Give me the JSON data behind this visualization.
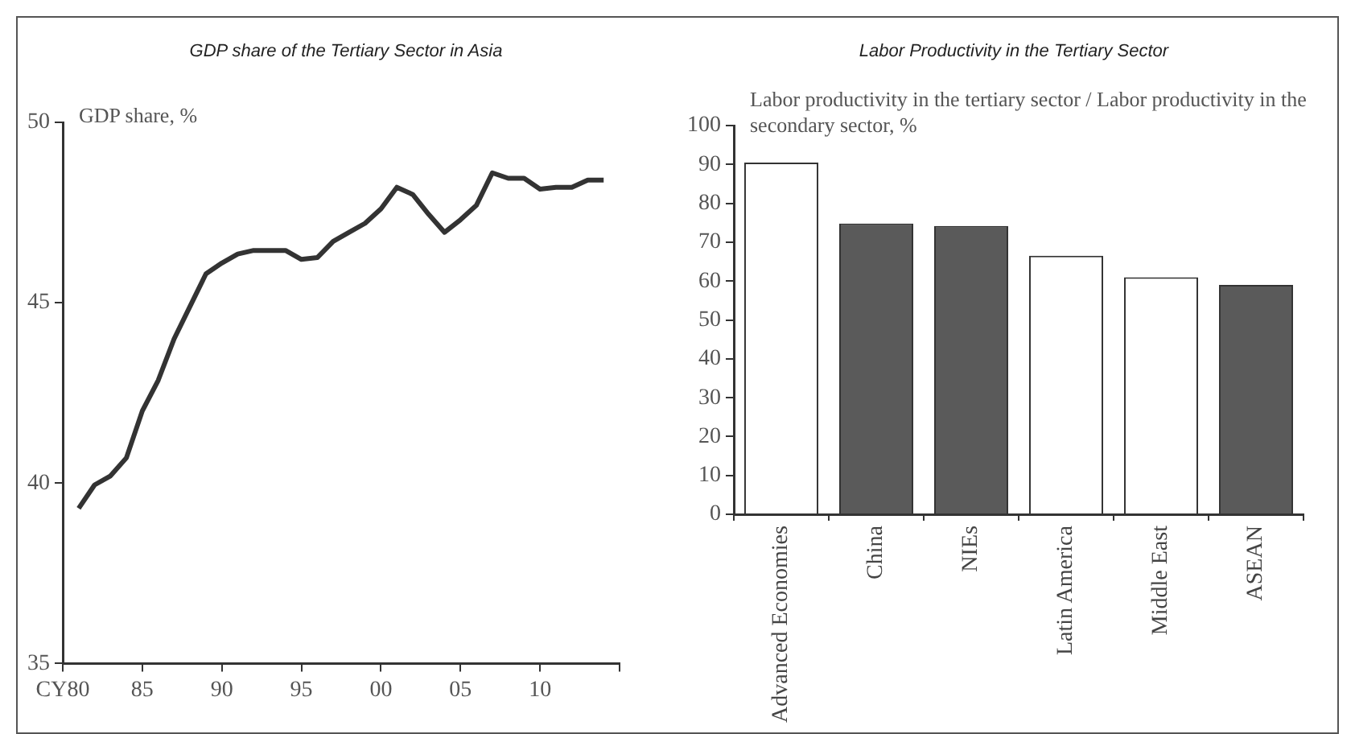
{
  "chart_data": [
    {
      "type": "line",
      "title": "GDP share of the Tertiary Sector in Asia",
      "ylabel": "GDP share, %",
      "color": "#333333",
      "x": [
        1981,
        1982,
        1983,
        1984,
        1985,
        1986,
        1987,
        1988,
        1989,
        1990,
        1991,
        1992,
        1993,
        1994,
        1995,
        1996,
        1997,
        1998,
        1999,
        2000,
        2001,
        2002,
        2003,
        2004,
        2005,
        2006,
        2007,
        2008,
        2009,
        2010,
        2011,
        2012,
        2013,
        2014
      ],
      "values": [
        39.3,
        39.95,
        40.2,
        40.7,
        42.0,
        42.85,
        44.0,
        44.9,
        45.8,
        46.1,
        46.35,
        46.45,
        46.45,
        46.45,
        46.2,
        46.25,
        46.7,
        46.95,
        47.2,
        47.6,
        48.2,
        48.0,
        47.45,
        46.95,
        47.3,
        47.7,
        48.6,
        48.45,
        48.45,
        48.15,
        48.2,
        48.2,
        48.4,
        48.4
      ],
      "xlim": [
        1980,
        2015
      ],
      "xticks": [
        {
          "value": 1980,
          "label": "CY80"
        },
        {
          "value": 1985,
          "label": "85"
        },
        {
          "value": 1990,
          "label": "90"
        },
        {
          "value": 1995,
          "label": "95"
        },
        {
          "value": 2000,
          "label": "00"
        },
        {
          "value": 2005,
          "label": "05"
        },
        {
          "value": 2010,
          "label": "10"
        },
        {
          "value": 2015,
          "label": null
        }
      ],
      "ylim": [
        35,
        50
      ],
      "yticks": [
        35,
        40,
        45,
        50
      ]
    },
    {
      "type": "bar",
      "title": "Labor Productivity in the Tertiary Sector",
      "ylabel": "Labor productivity in the tertiary sector / Labor productivity in the secondary sector, %",
      "categories": [
        "Advanced Economies",
        "China",
        "NIEs",
        "Latin America",
        "Middle East",
        "ASEAN"
      ],
      "values": [
        90.5,
        74.8,
        74.2,
        66.5,
        61,
        59
      ],
      "colors": [
        "#ffffff",
        "#5a5a5a",
        "#5a5a5a",
        "#ffffff",
        "#ffffff",
        "#5a5a5a"
      ],
      "ylim": [
        0,
        100
      ],
      "yticks": [
        0,
        10,
        20,
        30,
        40,
        50,
        60,
        70,
        80,
        90,
        100
      ]
    }
  ]
}
